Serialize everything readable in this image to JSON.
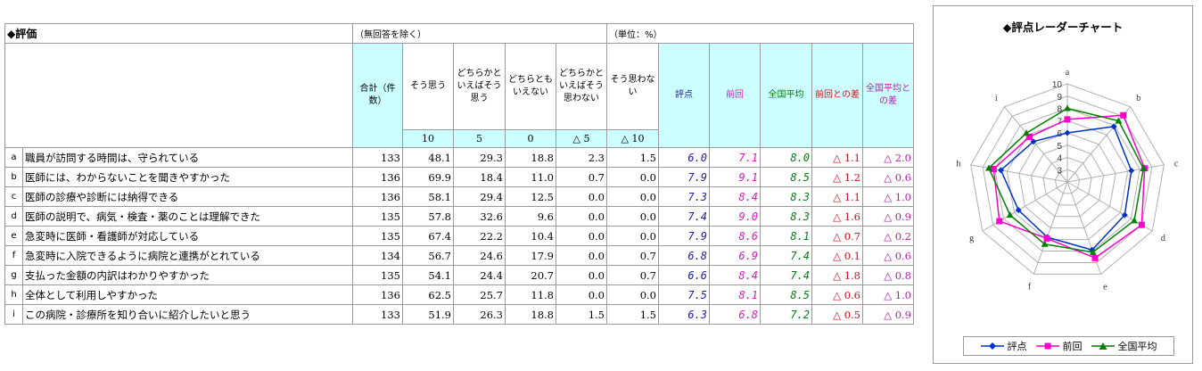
{
  "header": {
    "section_title": "◆評価",
    "note_no_answer": "（無回答を除く）",
    "note_unit": "（単位：%）"
  },
  "columns": {
    "total": "合計（件数）",
    "c1": "そう思う",
    "c2": "どちらかといえばそう思う",
    "c3": "どちらともいえない",
    "c4": "どちらかといえばそう思わない",
    "c5": "そう思わない",
    "score": "評点",
    "prev": "前回",
    "nat": "全国平均",
    "diff_prev": "前回との差",
    "diff_nat": "全国平均との差"
  },
  "weights": [
    "10",
    "5",
    "0",
    "△ 5",
    "△ 10"
  ],
  "rows": [
    {
      "id": "a",
      "label": "職員が訪問する時間は、守られている",
      "total": "133",
      "p1": "48.1",
      "p2": "29.3",
      "p3": "18.8",
      "p4": "2.3",
      "p5": "1.5",
      "score": "6.0",
      "prev": "7.1",
      "nat": "8.0",
      "dprev": "△ 1.1",
      "dnat": "△ 2.0"
    },
    {
      "id": "b",
      "label": "医師には、わからないことを聞きやすかった",
      "total": "136",
      "p1": "69.9",
      "p2": "18.4",
      "p3": "11.0",
      "p4": "0.7",
      "p5": "0.0",
      "score": "7.9",
      "prev": "9.1",
      "nat": "8.5",
      "dprev": "△ 1.2",
      "dnat": "△ 0.6"
    },
    {
      "id": "c",
      "label": "医師の診療や診断には納得できる",
      "total": "136",
      "p1": "58.1",
      "p2": "29.4",
      "p3": "12.5",
      "p4": "0.0",
      "p5": "0.0",
      "score": "7.3",
      "prev": "8.4",
      "nat": "8.3",
      "dprev": "△ 1.1",
      "dnat": "△ 1.0"
    },
    {
      "id": "d",
      "label": "医師の説明で、病気・検査・薬のことは理解できた",
      "total": "135",
      "p1": "57.8",
      "p2": "32.6",
      "p3": "9.6",
      "p4": "0.0",
      "p5": "0.0",
      "score": "7.4",
      "prev": "9.0",
      "nat": "8.3",
      "dprev": "△ 1.6",
      "dnat": "△ 0.9"
    },
    {
      "id": "e",
      "label": "急変時に医師・看護師が対応している",
      "total": "135",
      "p1": "67.4",
      "p2": "22.2",
      "p3": "10.4",
      "p4": "0.0",
      "p5": "0.0",
      "score": "7.9",
      "prev": "8.6",
      "nat": "8.1",
      "dprev": "△ 0.7",
      "dnat": "△ 0.2"
    },
    {
      "id": "f",
      "label": "急変時に入院できるように病院と連携がとれている",
      "total": "134",
      "p1": "56.7",
      "p2": "24.6",
      "p3": "17.9",
      "p4": "0.0",
      "p5": "0.7",
      "score": "6.8",
      "prev": "6.9",
      "nat": "7.4",
      "dprev": "△ 0.1",
      "dnat": "△ 0.6"
    },
    {
      "id": "g",
      "label": "支払った金額の内訳はわかりやすかった",
      "total": "135",
      "p1": "54.1",
      "p2": "24.4",
      "p3": "20.7",
      "p4": "0.0",
      "p5": "0.7",
      "score": "6.6",
      "prev": "8.4",
      "nat": "7.4",
      "dprev": "△ 1.8",
      "dnat": "△ 0.8"
    },
    {
      "id": "h",
      "label": "全体として利用しやすかった",
      "total": "136",
      "p1": "62.5",
      "p2": "25.7",
      "p3": "11.8",
      "p4": "0.0",
      "p5": "0.0",
      "score": "7.5",
      "prev": "8.1",
      "nat": "8.5",
      "dprev": "△ 0.6",
      "dnat": "△ 1.0"
    },
    {
      "id": "i",
      "label": "この病院・診療所を知り合いに紹介したいと思う",
      "total": "133",
      "p1": "51.9",
      "p2": "26.3",
      "p3": "18.8",
      "p4": "1.5",
      "p5": "1.5",
      "score": "6.3",
      "prev": "6.8",
      "nat": "7.2",
      "dprev": "△ 0.5",
      "dnat": "△ 0.9"
    }
  ],
  "chart_data": {
    "type": "radar",
    "title": "◆評点レーダーチャート",
    "categories": [
      "a",
      "b",
      "c",
      "d",
      "e",
      "f",
      "g",
      "h",
      "i"
    ],
    "rlim": [
      2,
      10
    ],
    "tick_labels": [
      "3",
      "4",
      "5",
      "6",
      "7",
      "8",
      "9",
      "10"
    ],
    "grid": true,
    "legend_position": "bottom",
    "series": [
      {
        "name": "評点",
        "color": "#0033cc",
        "marker": "diamond",
        "values": [
          6.0,
          7.9,
          7.3,
          7.4,
          7.9,
          6.8,
          6.6,
          7.5,
          6.3
        ]
      },
      {
        "name": "前回",
        "color": "#ff00cc",
        "marker": "square",
        "values": [
          7.1,
          9.1,
          8.4,
          9.0,
          8.6,
          6.9,
          8.4,
          8.1,
          6.8
        ]
      },
      {
        "name": "全国平均",
        "color": "#008000",
        "marker": "triangle",
        "values": [
          8.0,
          8.5,
          8.3,
          8.3,
          8.1,
          7.4,
          7.4,
          8.5,
          7.2
        ]
      }
    ]
  }
}
